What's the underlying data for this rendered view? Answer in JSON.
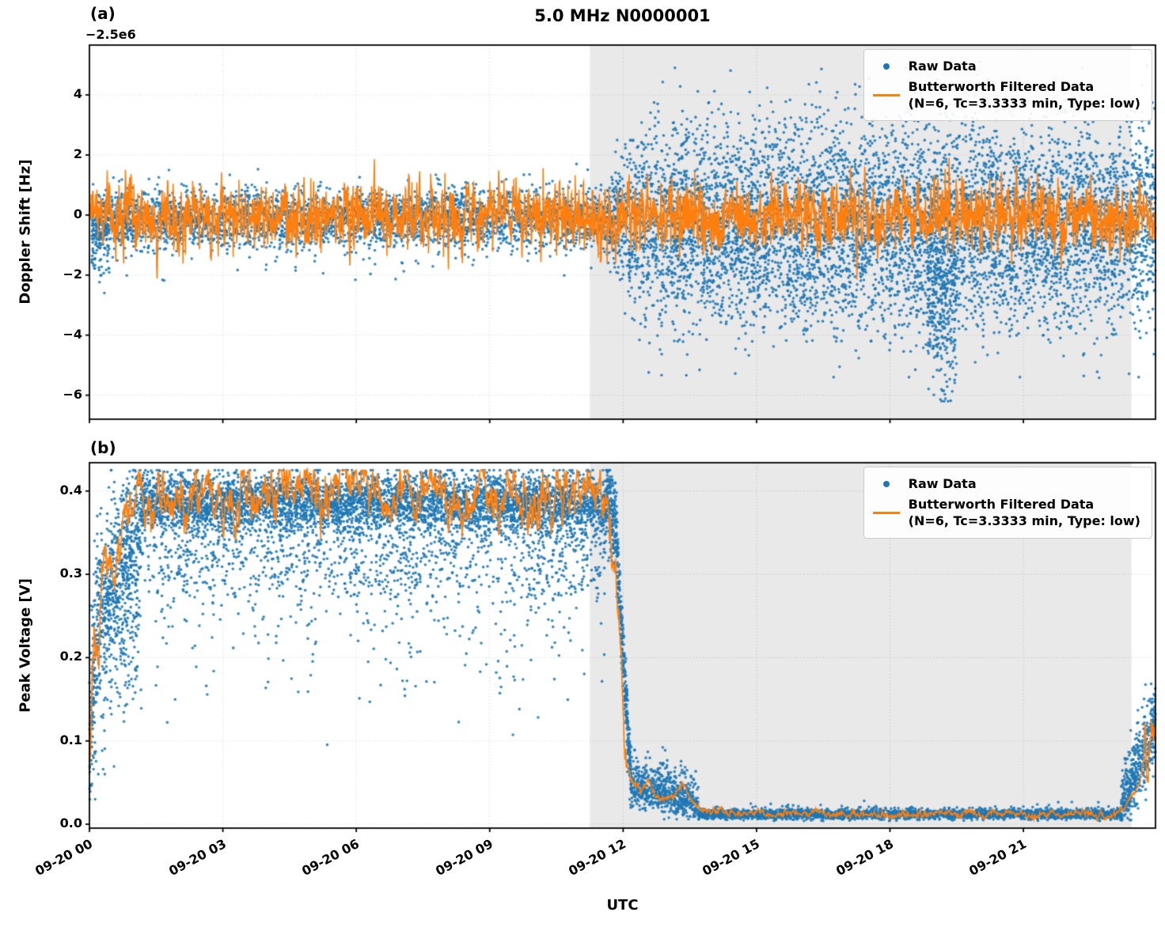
{
  "figure": {
    "title": "5.0 MHz N0000001",
    "xlabel": "UTC",
    "panel_a_tag": "(a)",
    "panel_b_tag": "(b)",
    "y_offset_text": "−2.5e6",
    "colors": {
      "raw": "#1f77b4",
      "filtered": "#ff7f0e",
      "shade": "#e9e9e9"
    }
  },
  "legend": {
    "raw": "Raw Data",
    "filtered_line1": "Butterworth Filtered Data",
    "filtered_line2": "(N=6, Tc=3.3333 min, Type: low)"
  },
  "chart_data": [
    {
      "panel": "a",
      "type": "scatter",
      "title": "5.0 MHz N0000001",
      "ylabel": "Doppler Shift [Hz]",
      "y_axis_offset": "−2.5e6",
      "ylim": [
        -6.8,
        5.66
      ],
      "yticks": {
        "values": [
          4,
          2,
          0,
          -2,
          -4,
          -6
        ],
        "labels": [
          "4",
          "2",
          "0",
          "−2",
          "−4",
          "−6"
        ]
      },
      "xlim": [
        0,
        23.97
      ],
      "xticks": [
        0,
        3,
        6,
        9,
        12,
        15,
        18,
        21
      ],
      "xtick_labels": [
        "09-20 00",
        "09-20 03",
        "09-20 06",
        "09-20 09",
        "09-20 12",
        "09-20 15",
        "09-20 18",
        "09-20 21"
      ],
      "shade": [
        11.25,
        23.43
      ],
      "summary": "Doppler shift (offset −2.5e6 Hz): quiet daytime band ~0±1 Hz until ~09-20 11:30 UTC, then a noisy night section (gray shading) spreading ±3 Hz with excursions to +4.5 and a deep dip to −6 near 09-20 19:15. Orange Butterworth-filtered curve oscillates around 0 with ~±1 Hz amplitude throughout.",
      "series": [
        {
          "name": "Raw Data",
          "type": "scatter",
          "color": "#1f77b4",
          "segments": [
            {
              "t": [
                0.05,
                11.55
              ],
              "n": 3600,
              "mean": [
                -0.15,
                -0.1
              ],
              "std": [
                0.48,
                0.48
              ],
              "tail_p": 0.025,
              "tail": [
                -1.5,
                -0.2
              ],
              "clamp": [
                -2.55,
                1.7
              ]
            },
            {
              "t": [
                0.05,
                0.45
              ],
              "n": 120,
              "mean": [
                -0.9,
                -0.4
              ],
              "std": [
                0.55,
                0.5
              ],
              "tail_p": 0.25,
              "tail": [
                -1.2,
                0
              ],
              "clamp": [
                -2.6,
                0.6
              ]
            },
            {
              "t": [
                11.55,
                12.35
              ],
              "n": 350,
              "mean": [
                -0.15,
                -0.35
              ],
              "std": [
                0.5,
                1.45
              ],
              "tail_p": 0.05,
              "tail": [
                -1,
                1
              ],
              "clamp": [
                -3.5,
                2.5
              ]
            },
            {
              "t": [
                12.35,
                23.97
              ],
              "n": 5800,
              "mean": [
                -0.35,
                -0.3
              ],
              "std": [
                1.45,
                1.5
              ],
              "tail_p": 0.07,
              "tail": [
                -2.3,
                1.8
              ],
              "clamp": [
                -6.3,
                5.1
              ]
            },
            {
              "t": [
                12.6,
                23.9
              ],
              "n": 380,
              "mean": [
                1.8,
                1.8
              ],
              "std": [
                1.1,
                1.1
              ],
              "tail_p": 0.35,
              "tail": [
                0,
                1.8
              ],
              "clamp": [
                -0.5,
                4.9
              ]
            },
            {
              "t": [
                18.85,
                19.5
              ],
              "n": 300,
              "mean": [
                -2.6,
                -2.6
              ],
              "std": [
                1.3,
                1.3
              ],
              "tail_p": 0.45,
              "tail": [
                -2.2,
                0
              ],
              "clamp": [
                -6.2,
                0.3
              ]
            },
            {
              "t": [
                12.8,
                23.7
              ],
              "n": 500,
              "mean": [
                -2.4,
                -2.4
              ],
              "std": [
                1.0,
                1.0
              ],
              "tail_p": 0.25,
              "tail": [
                -1.5,
                0
              ],
              "clamp": [
                -5.4,
                0
              ]
            }
          ]
        },
        {
          "name": "Butterworth Filtered Data",
          "type": "line",
          "color": "#ff7f0e",
          "gen": {
            "kind": "ar",
            "t": [
              0,
              23.97
            ],
            "dt": 0.008,
            "ar": 0.42,
            "sd": 0.52,
            "mean": -0.05,
            "clamp": [
              -2.15,
              1.95
            ]
          }
        }
      ]
    },
    {
      "panel": "b",
      "type": "scatter",
      "ylabel": "Peak Voltage [V]",
      "ylim": [
        -0.0047,
        0.434
      ],
      "yticks": {
        "values": [
          0.4,
          0.3,
          0.2,
          0.1,
          0.0
        ],
        "labels": [
          "0.4",
          "0.3",
          "0.2",
          "0.1",
          "0.0"
        ]
      },
      "xlim": [
        0,
        23.97
      ],
      "xticks": [
        0,
        3,
        6,
        9,
        12,
        15,
        18,
        21
      ],
      "xtick_labels": [
        "09-20 00",
        "09-20 03",
        "09-20 06",
        "09-20 09",
        "09-20 12",
        "09-20 15",
        "09-20 18",
        "09-20 21"
      ],
      "shade": [
        11.25,
        23.43
      ],
      "summary": "Peak voltage: rises from ~0.05 V at 09-20 00:00 to a dense daytime band at 0.34–0.42 V (filtered ~0.38–0.41 V) with downward spikes to ~0.1–0.2 V; sharp collapse near 09-20 12:00 down to ~0.05 V, decaying bumps until ~13:40, then flat ~0.012 V through the shaded night, recovering to ~0.15 V at the right edge (~09-20 23:45).",
      "series": [
        {
          "name": "Raw Data",
          "type": "scatter",
          "color": "#1f77b4",
          "segments": [
            {
              "t": [
                0.0,
                0.18
              ],
              "n": 140,
              "mean": [
                0.07,
                0.2
              ],
              "std": [
                0.04,
                0.06
              ],
              "tail_p": 0.5,
              "tail": [
                0,
                0.14
              ],
              "clamp": [
                0.03,
                0.37
              ]
            },
            {
              "t": [
                0.18,
                1.15
              ],
              "n": 750,
              "mean": [
                0.26,
                0.36
              ],
              "std": [
                0.05,
                0.045
              ],
              "tail_p": 0.35,
              "tail": [
                -0.15,
                0
              ],
              "clamp": [
                0.06,
                0.425
              ]
            },
            {
              "t": [
                1.15,
                11.62
              ],
              "n": 5600,
              "mean": [
                0.388,
                0.385
              ],
              "std": [
                0.018,
                0.018
              ],
              "tail_p": 0.22,
              "tail": [
                -0.1,
                0.008
              ],
              "clamp": [
                0.1,
                0.425
              ]
            },
            {
              "t": [
                1.15,
                11.6
              ],
              "n": 420,
              "mean": [
                0.3,
                0.3
              ],
              "std": [
                0.045,
                0.045
              ],
              "tail_p": 0.45,
              "tail": [
                -0.13,
                0
              ],
              "clamp": [
                0.09,
                0.37
              ]
            },
            {
              "t": [
                11.62,
                11.82
              ],
              "n": 150,
              "mean": [
                0.4,
                0.365
              ],
              "std": [
                0.02,
                0.025
              ],
              "tail_p": 0.2,
              "tail": [
                -0.05,
                0
              ],
              "clamp": [
                0.2,
                0.425
              ]
            },
            {
              "t": [
                11.82,
                12.18
              ],
              "n": 320,
              "mean": [
                0.36,
                0.05
              ],
              "std": [
                0.025,
                0.012
              ],
              "tail_p": 0.3,
              "tail": [
                -0.04,
                0.04
              ],
              "clamp": [
                0.02,
                0.41
              ]
            },
            {
              "t": [
                12.18,
                13.7
              ],
              "n": 650,
              "mean": [
                0.045,
                0.02
              ],
              "std": [
                0.012,
                0.008
              ],
              "tail_p": 0.3,
              "tail": [
                0,
                0.035
              ],
              "clamp": [
                0.006,
                0.1
              ]
            },
            {
              "t": [
                13.7,
                23.2
              ],
              "n": 3200,
              "mean": [
                0.012,
                0.012
              ],
              "std": [
                0.0028,
                0.0028
              ],
              "tail_p": 0.04,
              "tail": [
                0,
                0.01
              ],
              "clamp": [
                0.004,
                0.045
              ]
            },
            {
              "t": [
                23.2,
                23.97
              ],
              "n": 450,
              "mean": [
                0.014,
                0.115
              ],
              "std": [
                0.012,
                0.022
              ],
              "tail_p": 0.3,
              "tail": [
                0,
                0.05
              ],
              "clamp": [
                0.005,
                0.175
              ]
            }
          ]
        },
        {
          "name": "Butterworth Filtered Data",
          "type": "line",
          "color": "#ff7f0e",
          "gen": {
            "kind": "path",
            "dt": 0.01,
            "ar": 0.8,
            "sd": 0.012,
            "clamp": [
              0.004,
              0.425
            ],
            "points": [
              [
                0,
                0.06
              ],
              [
                0.1,
                0.25
              ],
              [
                0.2,
                0.2
              ],
              [
                0.35,
                0.33
              ],
              [
                0.5,
                0.3
              ],
              [
                0.8,
                0.37
              ],
              [
                1.2,
                0.38
              ],
              [
                2,
                0.392
              ],
              [
                3,
                0.4
              ],
              [
                4,
                0.395
              ],
              [
                5,
                0.4
              ],
              [
                6,
                0.408
              ],
              [
                7,
                0.398
              ],
              [
                8,
                0.39
              ],
              [
                9,
                0.4
              ],
              [
                10,
                0.392
              ],
              [
                10.8,
                0.402
              ],
              [
                11.3,
                0.4
              ],
              [
                11.6,
                0.39
              ],
              [
                11.75,
                0.36
              ],
              [
                11.9,
                0.25
              ],
              [
                12.0,
                0.13
              ],
              [
                12.1,
                0.07
              ],
              [
                12.2,
                0.05
              ],
              [
                12.4,
                0.04
              ],
              [
                12.55,
                0.06
              ],
              [
                12.7,
                0.035
              ],
              [
                13.0,
                0.03
              ],
              [
                13.35,
                0.045
              ],
              [
                13.6,
                0.025
              ],
              [
                13.8,
                0.016
              ],
              [
                14.5,
                0.013
              ],
              [
                16,
                0.013
              ],
              [
                18,
                0.012
              ],
              [
                20,
                0.013
              ],
              [
                22,
                0.012
              ],
              [
                23.0,
                0.012
              ],
              [
                23.3,
                0.02
              ],
              [
                23.6,
                0.05
              ],
              [
                23.8,
                0.1
              ],
              [
                23.9,
                0.14
              ],
              [
                23.97,
                0.1
              ]
            ]
          }
        }
      ]
    }
  ]
}
